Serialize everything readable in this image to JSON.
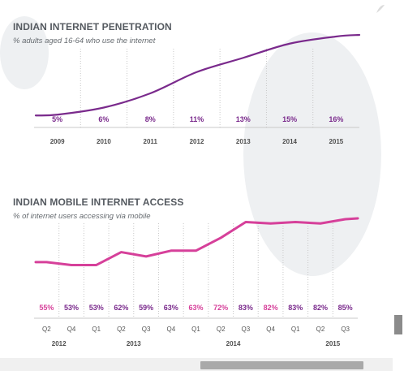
{
  "colors": {
    "purple": "#7a2a8c",
    "pink": "#d6409a",
    "grid": "#c8c8c8",
    "axis_text": "#555555",
    "year_text": "#4f4f4f"
  },
  "chart_data": [
    {
      "type": "line",
      "title": "INDIAN INTERNET PENETRATION",
      "subtitle": "% adults aged 16-64 who use the internet",
      "categories": [
        "2009",
        "2010",
        "2011",
        "2012",
        "2013",
        "2014",
        "2015"
      ],
      "values": [
        5,
        6,
        8,
        11,
        13,
        15,
        16
      ],
      "data_labels": [
        "5%",
        "6%",
        "8%",
        "11%",
        "13%",
        "15%",
        "16%"
      ],
      "color": "#7a2a8c",
      "ylim": [
        0,
        20
      ],
      "grid": true
    },
    {
      "type": "line",
      "title": "INDIAN MOBILE INTERNET ACCESS",
      "subtitle": "% of internet users accessing via mobile",
      "categories": [
        "Q2",
        "Q4",
        "Q1",
        "Q2",
        "Q3",
        "Q4",
        "Q1",
        "Q2",
        "Q3",
        "Q4",
        "Q1",
        "Q2",
        "Q3"
      ],
      "values": [
        55,
        53,
        53,
        62,
        59,
        63,
        63,
        72,
        83,
        82,
        83,
        82,
        85
      ],
      "data_labels": [
        "55%",
        "53%",
        "53%",
        "62%",
        "59%",
        "63%",
        "63%",
        "72%",
        "83%",
        "82%",
        "83%",
        "82%",
        "85%"
      ],
      "label_colors": [
        "#d6409a",
        "#7a2a8c",
        "#7a2a8c",
        "#7a2a8c",
        "#7a2a8c",
        "#7a2a8c",
        "#d6409a",
        "#d6409a",
        "#7a2a8c",
        "#d6409a",
        "#7a2a8c",
        "#7a2a8c",
        "#7a2a8c"
      ],
      "years": [
        {
          "label": "2012",
          "index": 0.5
        },
        {
          "label": "2013",
          "index": 3.5
        },
        {
          "label": "2014",
          "index": 7.5
        },
        {
          "label": "2015",
          "index": 11.5
        }
      ],
      "color": "#d6409a",
      "ylim": [
        0,
        100
      ],
      "grid": true
    }
  ]
}
